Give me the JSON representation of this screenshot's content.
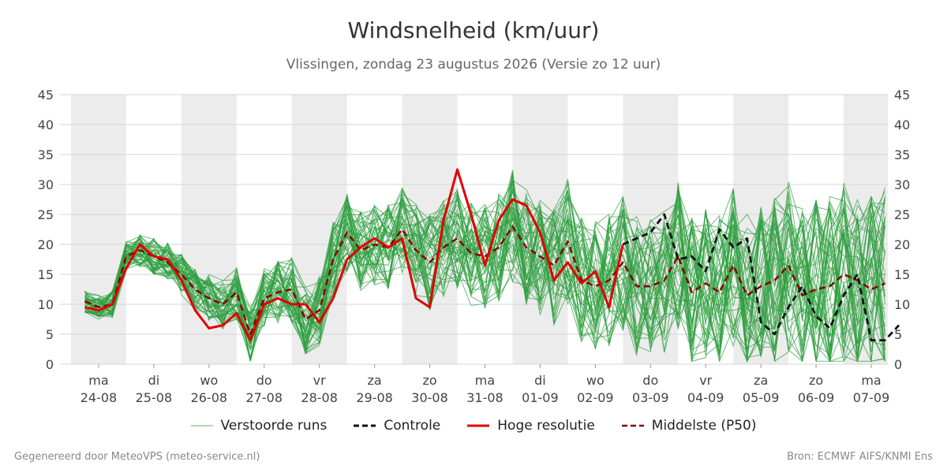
{
  "title": "Windsnelheid (km/uur)",
  "subtitle": "Vlissingen, zondag 23 augustus 2026 (Versie zo 12 uur)",
  "footer": {
    "left": "Gegenereerd door MeteoVPS (meteo-service.nl)",
    "right": "Bron: ECMWF AIFS/KNMI Ens"
  },
  "legend": [
    {
      "label": "Verstoorde runs",
      "color": "#2e9e3e",
      "style": "thin"
    },
    {
      "label": "Controle",
      "color": "#111111",
      "style": "dashed"
    },
    {
      "label": "Hoge resolutie",
      "color": "#e00000",
      "style": "solid"
    },
    {
      "label": "Middelste (P50)",
      "color": "#8b0000",
      "style": "dashed"
    }
  ],
  "chart_data": {
    "type": "line",
    "title": "Windsnelheid (km/uur)",
    "ylim": [
      0,
      45
    ],
    "yticks": [
      0,
      5,
      10,
      15,
      20,
      25,
      30,
      35,
      40,
      45
    ],
    "xlim_days": [
      -0.7,
      14.3
    ],
    "day_labels": [
      {
        "day": "ma",
        "date": "24-08"
      },
      {
        "day": "di",
        "date": "25-08"
      },
      {
        "day": "wo",
        "date": "26-08"
      },
      {
        "day": "do",
        "date": "27-08"
      },
      {
        "day": "vr",
        "date": "28-08"
      },
      {
        "day": "za",
        "date": "29-08"
      },
      {
        "day": "zo",
        "date": "30-08"
      },
      {
        "day": "ma",
        "date": "31-08"
      },
      {
        "day": "di",
        "date": "01-09"
      },
      {
        "day": "wo",
        "date": "02-09"
      },
      {
        "day": "do",
        "date": "03-09"
      },
      {
        "day": "vr",
        "date": "04-09"
      },
      {
        "day": "za",
        "date": "05-09"
      },
      {
        "day": "zo",
        "date": "06-09"
      },
      {
        "day": "ma",
        "date": "07-09"
      }
    ],
    "shaded_days": [
      0,
      2,
      4,
      6,
      8,
      10,
      12,
      14
    ],
    "grid": true,
    "legend_position": "bottom",
    "ensemble_members": 50,
    "series": [
      {
        "name": "Hoge resolutie",
        "x": [
          -0.25,
          0,
          0.25,
          0.5,
          0.75,
          1,
          1.25,
          1.5,
          1.75,
          2,
          2.25,
          2.5,
          2.75,
          3,
          3.25,
          3.5,
          3.75,
          4,
          4.25,
          4.5,
          4.75,
          5,
          5.25,
          5.5,
          5.75,
          6,
          6.25,
          6.5,
          6.75,
          7,
          7.25,
          7.5,
          7.75,
          8,
          8.25,
          8.5,
          8.75,
          9,
          9.25,
          9.5
        ],
        "y": [
          9.5,
          9,
          10,
          16,
          20,
          18,
          17.5,
          14,
          9,
          6,
          6.5,
          8.5,
          4,
          10,
          11,
          10,
          10,
          7,
          11,
          17.5,
          19.5,
          21,
          19.5,
          21,
          11,
          9.5,
          24,
          32.5,
          25,
          16.5,
          24,
          27.5,
          26.5,
          22,
          14,
          17,
          13.5,
          15.5,
          9.5,
          20
        ]
      },
      {
        "name": "Controle",
        "x": [
          9.5,
          10,
          10.25,
          10.5,
          10.75,
          11,
          11.25,
          11.5,
          11.75,
          12,
          12.25,
          12.5,
          12.75,
          13,
          13.25,
          13.5,
          13.75,
          14,
          14.25,
          14.5
        ],
        "y": [
          20,
          22,
          25,
          17.5,
          18,
          15.5,
          22.5,
          19.5,
          21,
          7,
          5,
          9.5,
          13,
          8,
          6,
          11.5,
          15,
          4,
          4,
          6.5
        ]
      },
      {
        "name": "Middelste (P50)",
        "x": [
          -0.25,
          0,
          0.25,
          0.5,
          0.75,
          1,
          1.25,
          1.5,
          1.75,
          2,
          2.25,
          2.5,
          2.75,
          3,
          3.25,
          3.5,
          3.75,
          4,
          4.25,
          4.5,
          4.75,
          5,
          5.25,
          5.5,
          5.75,
          6,
          6.25,
          6.5,
          6.75,
          7,
          7.25,
          7.5,
          7.75,
          8,
          8.25,
          8.5,
          8.75,
          9,
          9.25,
          9.5,
          9.75,
          10,
          10.25,
          10.5,
          10.75,
          11,
          11.25,
          11.5,
          11.75,
          12,
          12.25,
          12.5,
          12.75,
          13,
          13.25,
          13.5,
          13.75,
          14,
          14.25
        ],
        "y": [
          10.5,
          9.5,
          10,
          18,
          19,
          18,
          17,
          15,
          12.5,
          11,
          10,
          12,
          5,
          11,
          12,
          12.5,
          7.5,
          9,
          17.5,
          22,
          19,
          20,
          19.5,
          22.5,
          19,
          17,
          19.5,
          21,
          18.5,
          18,
          19.5,
          23,
          19.5,
          18,
          16.5,
          20.5,
          14,
          13,
          14,
          17,
          13,
          13,
          14,
          18,
          12,
          13.5,
          12,
          16.5,
          11.5,
          13,
          14,
          16.5,
          11.5,
          12.5,
          13,
          15,
          14,
          12.5,
          13.5
        ]
      }
    ]
  }
}
